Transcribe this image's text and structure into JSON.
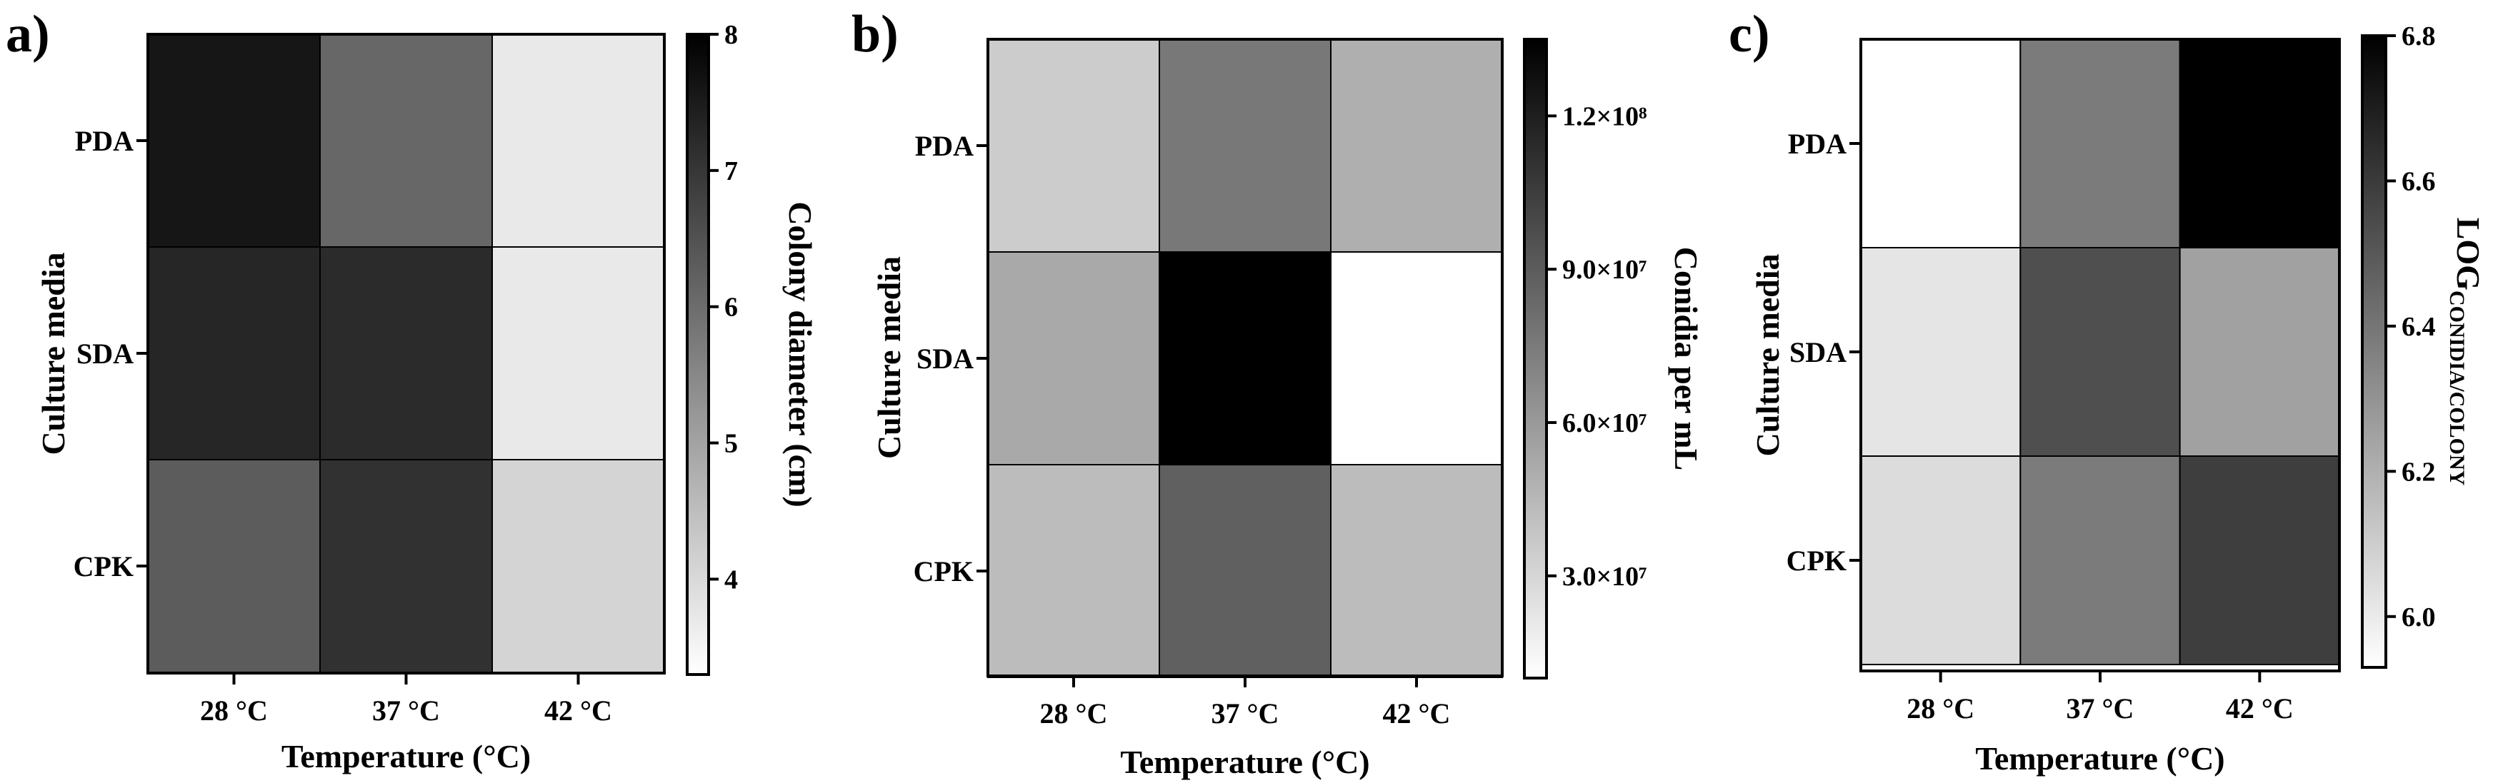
{
  "chart_data": [
    {
      "type": "heatmap",
      "panel_label": "a)",
      "x_categories": [
        "28 °C",
        "37 °C",
        "42 °C"
      ],
      "y_categories": [
        "PDA",
        "SDA",
        "CPK"
      ],
      "xlabel": "Temperature (°C)",
      "ylabel": "Culture media",
      "colorbar_label": "Colony diameter (cm)",
      "colorbar_label_sub": "",
      "colorbar_range": [
        3.3,
        8.0
      ],
      "colorbar_ticks": [
        4,
        5,
        6,
        7,
        8
      ],
      "colorbar_tick_labels": [
        "4",
        "5",
        "6",
        "7",
        "8"
      ],
      "colormap": [
        "#ffffff",
        "#000000"
      ],
      "values": [
        [
          7.6,
          6.1,
          3.7
        ],
        [
          7.3,
          7.2,
          3.7
        ],
        [
          6.3,
          7.1,
          4.1
        ]
      ]
    },
    {
      "type": "heatmap",
      "panel_label": "b)",
      "x_categories": [
        "28 °C",
        "37 °C",
        "42 °C"
      ],
      "y_categories": [
        "PDA",
        "SDA",
        "CPK"
      ],
      "xlabel": "Temperature (°C)",
      "ylabel": "Culture media",
      "colorbar_label": "Conidia per mL",
      "colorbar_label_sub": "",
      "colorbar_range": [
        10000000,
        135000000
      ],
      "colorbar_ticks": [
        30000000,
        60000000,
        90000000,
        120000000
      ],
      "colorbar_tick_labels": [
        "3.0×10⁷",
        "6.0×10⁷",
        "9.0×10⁷",
        "1.2×10⁸"
      ],
      "colormap": [
        "#ffffff",
        "#000000"
      ],
      "values": [
        [
          35000000,
          76000000,
          49000000
        ],
        [
          52000000,
          135000000,
          10000000
        ],
        [
          43000000,
          88000000,
          43000000
        ]
      ]
    },
    {
      "type": "heatmap",
      "panel_label": "c)",
      "x_categories": [
        "28 °C",
        "37 °C",
        "42 °C"
      ],
      "y_categories": [
        "PDA",
        "SDA",
        "CPK"
      ],
      "xlabel": "Temperature (°C)",
      "ylabel": "Culture media",
      "colorbar_label": "LOG",
      "colorbar_label_sub": "CONIDIA/COLONY",
      "colorbar_range": [
        5.93,
        6.8
      ],
      "colorbar_ticks": [
        6.0,
        6.2,
        6.4,
        6.6,
        6.8
      ],
      "colorbar_tick_labels": [
        "6.0",
        "6.2",
        "6.4",
        "6.6",
        "6.8"
      ],
      "colormap": [
        "#ffffff",
        "#000000"
      ],
      "values": [
        [
          5.93,
          6.38,
          6.8
        ],
        [
          6.02,
          6.53,
          6.25
        ],
        [
          6.05,
          6.38,
          6.59
        ]
      ]
    }
  ]
}
